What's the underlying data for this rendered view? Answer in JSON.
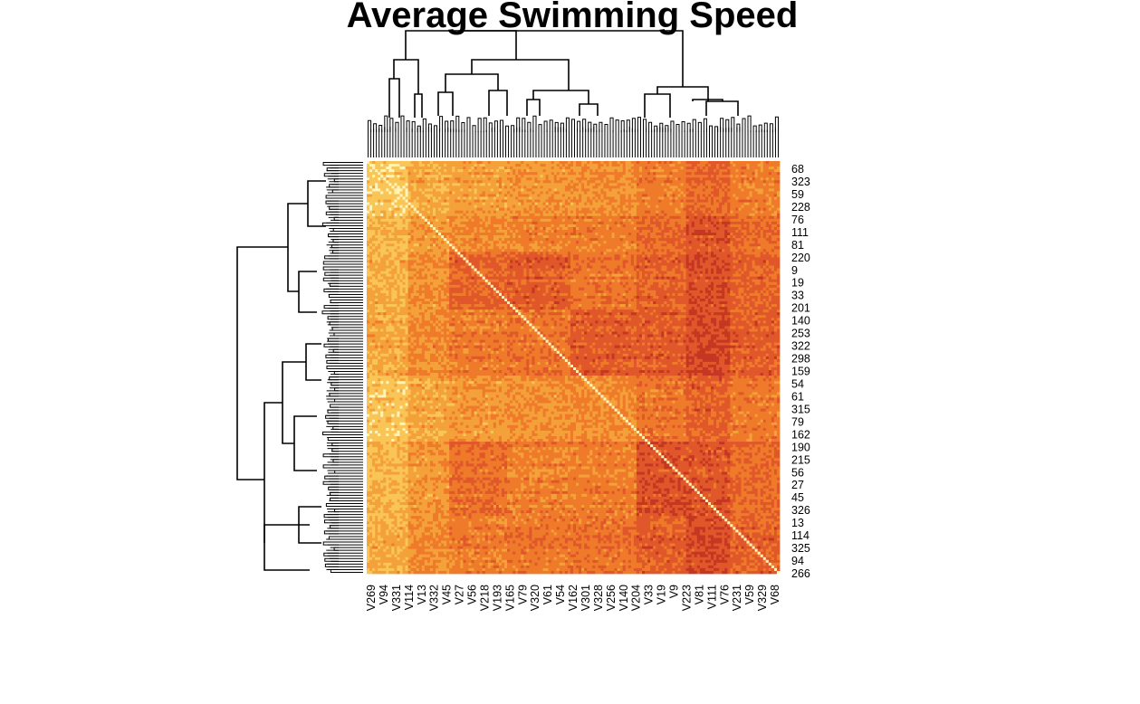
{
  "chart_data": {
    "type": "heatmap",
    "title": "Average Swimming Speed",
    "column_labels": [
      "V269",
      "V94",
      "V331",
      "V114",
      "V13",
      "V332",
      "V45",
      "V27",
      "V56",
      "V218",
      "V193",
      "V165",
      "V79",
      "V320",
      "V61",
      "V54",
      "V162",
      "V301",
      "V328",
      "V256",
      "V140",
      "V204",
      "V33",
      "V19",
      "V9",
      "V223",
      "V81",
      "V111",
      "V76",
      "V231",
      "V59",
      "V329",
      "V68"
    ],
    "row_labels": [
      "68",
      "323",
      "59",
      "228",
      "76",
      "111",
      "81",
      "220",
      "9",
      "19",
      "33",
      "201",
      "140",
      "253",
      "322",
      "298",
      "159",
      "54",
      "61",
      "315",
      "79",
      "162",
      "190",
      "215",
      "56",
      "27",
      "45",
      "326",
      "13",
      "114",
      "325",
      "94",
      "266"
    ],
    "color_scale": [
      "#fff5bb",
      "#f9c556",
      "#f4a13a",
      "#ee7a2a",
      "#e0572a",
      "#c53722",
      "#a0261c"
    ],
    "dendrogram_top": true,
    "dendrogram_left": true,
    "diagonal": "self-similarity"
  }
}
